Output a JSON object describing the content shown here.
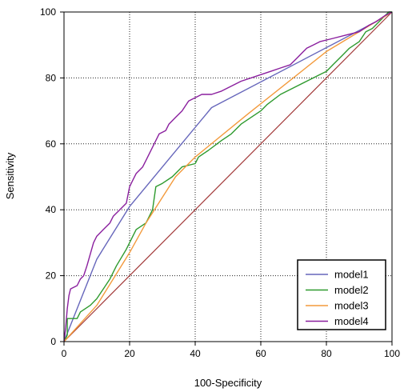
{
  "chart_data": {
    "type": "line",
    "title": "",
    "xlabel": "100-Specificity",
    "ylabel": "Sensitivity",
    "xlim": [
      0,
      100
    ],
    "ylim": [
      0,
      100
    ],
    "x_ticks": [
      0,
      20,
      40,
      60,
      80,
      100
    ],
    "y_ticks": [
      0,
      20,
      40,
      60,
      80,
      100
    ],
    "grid": true,
    "legend_position": "bottom-right",
    "reference_line": {
      "points": [
        [
          0,
          0
        ],
        [
          100,
          100
        ]
      ],
      "color": "#a33a3a"
    },
    "series": [
      {
        "name": "model1",
        "color": "#6666bb",
        "points": [
          [
            0,
            0
          ],
          [
            10,
            25
          ],
          [
            20,
            41
          ],
          [
            45,
            71
          ],
          [
            95,
            97
          ],
          [
            100,
            100
          ]
        ]
      },
      {
        "name": "model2",
        "color": "#2e9a2e",
        "points": [
          [
            0,
            0
          ],
          [
            1,
            2
          ],
          [
            1,
            7
          ],
          [
            4,
            7
          ],
          [
            5,
            9
          ],
          [
            8,
            11
          ],
          [
            10,
            13
          ],
          [
            12,
            16
          ],
          [
            14,
            19
          ],
          [
            16,
            23
          ],
          [
            19,
            28
          ],
          [
            22,
            34
          ],
          [
            25,
            36
          ],
          [
            27,
            40
          ],
          [
            28,
            47
          ],
          [
            30,
            48
          ],
          [
            33,
            50
          ],
          [
            36,
            53
          ],
          [
            40,
            54
          ],
          [
            41,
            56
          ],
          [
            44,
            58
          ],
          [
            48,
            61
          ],
          [
            51,
            63
          ],
          [
            54,
            66
          ],
          [
            57,
            68
          ],
          [
            60,
            70
          ],
          [
            62,
            72
          ],
          [
            66,
            75
          ],
          [
            70,
            77
          ],
          [
            74,
            79
          ],
          [
            78,
            81
          ],
          [
            80,
            82
          ],
          [
            82,
            84
          ],
          [
            85,
            87
          ],
          [
            87,
            89
          ],
          [
            90,
            91
          ],
          [
            92,
            94
          ],
          [
            94,
            95
          ],
          [
            96,
            97
          ],
          [
            98,
            99
          ],
          [
            99,
            100
          ],
          [
            100,
            100
          ]
        ]
      },
      {
        "name": "model3",
        "color": "#f39a3c",
        "points": [
          [
            0,
            0
          ],
          [
            10,
            11
          ],
          [
            20,
            27
          ],
          [
            25,
            36
          ],
          [
            34,
            50
          ],
          [
            40,
            56
          ],
          [
            56,
            69
          ],
          [
            80,
            88
          ],
          [
            100,
            100
          ]
        ]
      },
      {
        "name": "model4",
        "color": "#8a1f9e",
        "points": [
          [
            0,
            0
          ],
          [
            0.5,
            4
          ],
          [
            1,
            10
          ],
          [
            1.5,
            14
          ],
          [
            2,
            16
          ],
          [
            4,
            17
          ],
          [
            5,
            19
          ],
          [
            6,
            20
          ],
          [
            7,
            23
          ],
          [
            9,
            30
          ],
          [
            10,
            32
          ],
          [
            12,
            34
          ],
          [
            14,
            36
          ],
          [
            15,
            38
          ],
          [
            17,
            40
          ],
          [
            19,
            42
          ],
          [
            20,
            47
          ],
          [
            21,
            49
          ],
          [
            22,
            51
          ],
          [
            24,
            53
          ],
          [
            25,
            55
          ],
          [
            26,
            57
          ],
          [
            27,
            59
          ],
          [
            28,
            61
          ],
          [
            29,
            63
          ],
          [
            31,
            64
          ],
          [
            32,
            66
          ],
          [
            34,
            68
          ],
          [
            36,
            70
          ],
          [
            38,
            73
          ],
          [
            40,
            74
          ],
          [
            42,
            75
          ],
          [
            45,
            75
          ],
          [
            48,
            76
          ],
          [
            50,
            77
          ],
          [
            54,
            79
          ],
          [
            57,
            80
          ],
          [
            60,
            81
          ],
          [
            63,
            82
          ],
          [
            66,
            83
          ],
          [
            69,
            84
          ],
          [
            71,
            86
          ],
          [
            73,
            88
          ],
          [
            74,
            89
          ],
          [
            76,
            90
          ],
          [
            78,
            91
          ],
          [
            82,
            92
          ],
          [
            86,
            93
          ],
          [
            90,
            94
          ],
          [
            93,
            96
          ],
          [
            95,
            97
          ],
          [
            98,
            99
          ],
          [
            100,
            100
          ]
        ]
      }
    ]
  }
}
